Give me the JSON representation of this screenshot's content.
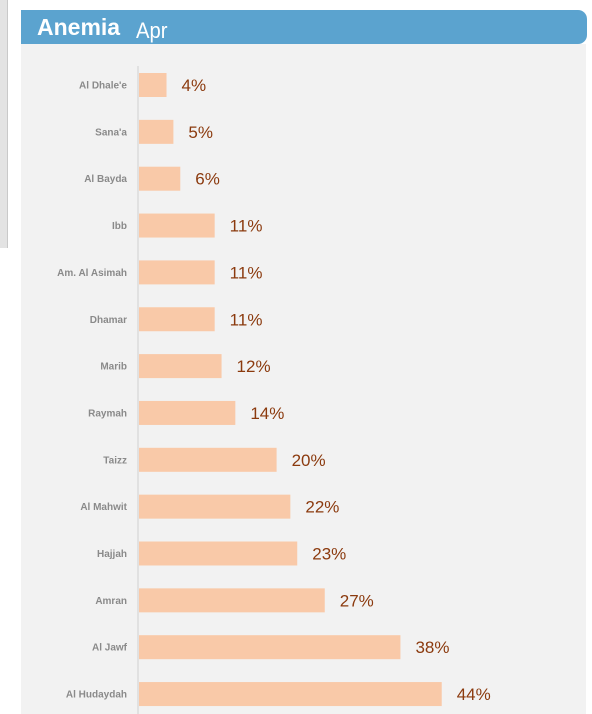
{
  "header": {
    "title": "Anemia",
    "subtitle": "Apr"
  },
  "colors": {
    "header_bg": "#5ba3cf",
    "panel_bg": "#f2f2f2",
    "bar": "#f9c9a8",
    "value_label": "#8b3a0e",
    "category_label": "#8a8a8a"
  },
  "chart_data": {
    "type": "bar",
    "orientation": "horizontal",
    "categories": [
      "Al Dhale'e",
      "Sana'a",
      "Al Bayda",
      "Ibb",
      "Am. Al Asimah",
      "Dhamar",
      "Marib",
      "Raymah",
      "Taizz",
      "Al Mahwit",
      "Hajjah",
      "Amran",
      "Al Jawf",
      "Al Hudaydah"
    ],
    "values": [
      4,
      5,
      6,
      11,
      11,
      11,
      12,
      14,
      20,
      22,
      23,
      27,
      38,
      44
    ],
    "value_labels": [
      "4%",
      "5%",
      "6%",
      "11%",
      "11%",
      "11%",
      "12%",
      "14%",
      "20%",
      "22%",
      "23%",
      "27%",
      "38%",
      "44%"
    ],
    "title": "Anemia",
    "subtitle": "Apr",
    "unit": "%",
    "xlim": [
      0,
      65
    ],
    "grid": false,
    "legend": "none"
  }
}
